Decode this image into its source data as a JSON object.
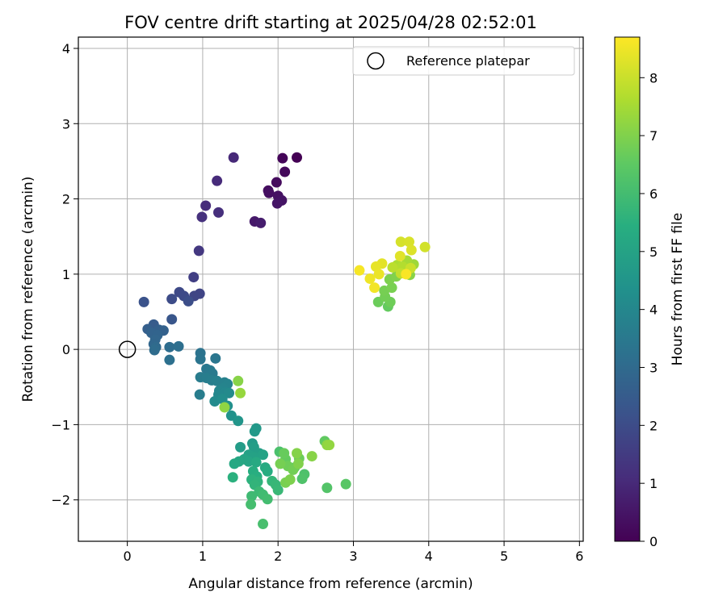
{
  "chart_data": {
    "type": "scatter",
    "title": "FOV centre drift starting at 2025/04/28 02:52:01",
    "xlabel": "Angular distance from reference (arcmin)",
    "ylabel": "Rotation from reference (arcmin)",
    "colorbar_label": "Hours from first FF file",
    "xlim": [
      -0.65,
      6.05
    ],
    "ylim": [
      -2.55,
      4.15
    ],
    "color_range": [
      0,
      8.7
    ],
    "colormap": "viridis",
    "grid": true,
    "legend_position": "upper right",
    "x_ticks": [
      0,
      1,
      2,
      3,
      4,
      5,
      6
    ],
    "y_ticks": [
      -2,
      -1,
      0,
      1,
      2,
      3,
      4
    ],
    "color_ticks": [
      0,
      1,
      2,
      3,
      4,
      5,
      6,
      7,
      8
    ],
    "x_tick_labels": [
      "0",
      "1",
      "2",
      "3",
      "4",
      "5",
      "6"
    ],
    "y_tick_labels": [
      "−2",
      "−1",
      "0",
      "1",
      "2",
      "3",
      "4"
    ],
    "color_tick_labels": [
      "0",
      "1",
      "2",
      "3",
      "4",
      "5",
      "6",
      "7",
      "8"
    ],
    "reference": {
      "name": "Reference platepar",
      "x": 0,
      "y": 0
    },
    "points": [
      {
        "x": 2.25,
        "y": 2.55,
        "t": 0.0
      },
      {
        "x": 2.06,
        "y": 2.54,
        "t": 0.1
      },
      {
        "x": 2.09,
        "y": 2.36,
        "t": 0.2
      },
      {
        "x": 1.98,
        "y": 2.22,
        "t": 0.25
      },
      {
        "x": 1.87,
        "y": 2.11,
        "t": 0.3
      },
      {
        "x": 1.88,
        "y": 2.08,
        "t": 0.35
      },
      {
        "x": 2.0,
        "y": 2.04,
        "t": 0.4
      },
      {
        "x": 2.05,
        "y": 1.98,
        "t": 0.45
      },
      {
        "x": 1.99,
        "y": 1.94,
        "t": 0.5
      },
      {
        "x": 1.69,
        "y": 1.7,
        "t": 0.6
      },
      {
        "x": 1.77,
        "y": 1.68,
        "t": 0.7
      },
      {
        "x": 1.41,
        "y": 2.55,
        "t": 1.0
      },
      {
        "x": 1.19,
        "y": 2.24,
        "t": 1.05
      },
      {
        "x": 1.04,
        "y": 1.91,
        "t": 1.1
      },
      {
        "x": 1.21,
        "y": 1.82,
        "t": 1.15
      },
      {
        "x": 0.99,
        "y": 1.76,
        "t": 1.2
      },
      {
        "x": 0.95,
        "y": 1.31,
        "t": 1.4
      },
      {
        "x": 0.88,
        "y": 0.96,
        "t": 1.6
      },
      {
        "x": 0.96,
        "y": 0.74,
        "t": 1.75
      },
      {
        "x": 0.89,
        "y": 0.71,
        "t": 1.8
      },
      {
        "x": 0.69,
        "y": 0.76,
        "t": 1.9
      },
      {
        "x": 0.75,
        "y": 0.71,
        "t": 1.95
      },
      {
        "x": 0.59,
        "y": 0.67,
        "t": 2.0
      },
      {
        "x": 0.81,
        "y": 0.64,
        "t": 2.05
      },
      {
        "x": 0.22,
        "y": 0.63,
        "t": 2.2
      },
      {
        "x": 0.59,
        "y": 0.4,
        "t": 2.3
      },
      {
        "x": 0.35,
        "y": 0.33,
        "t": 2.5
      },
      {
        "x": 0.27,
        "y": 0.27,
        "t": 2.6
      },
      {
        "x": 0.42,
        "y": 0.26,
        "t": 2.65
      },
      {
        "x": 0.48,
        "y": 0.25,
        "t": 2.7
      },
      {
        "x": 0.32,
        "y": 0.22,
        "t": 2.75
      },
      {
        "x": 0.4,
        "y": 0.19,
        "t": 2.8
      },
      {
        "x": 0.37,
        "y": 0.13,
        "t": 2.85
      },
      {
        "x": 0.35,
        "y": 0.07,
        "t": 2.9
      },
      {
        "x": 0.38,
        "y": 0.03,
        "t": 3.0
      },
      {
        "x": 0.36,
        "y": -0.01,
        "t": 3.05
      },
      {
        "x": 0.56,
        "y": 0.03,
        "t": 3.1
      },
      {
        "x": 0.68,
        "y": 0.04,
        "t": 3.15
      },
      {
        "x": 0.56,
        "y": -0.14,
        "t": 3.2
      },
      {
        "x": 0.97,
        "y": -0.05,
        "t": 3.3
      },
      {
        "x": 0.97,
        "y": -0.13,
        "t": 3.35
      },
      {
        "x": 1.17,
        "y": -0.12,
        "t": 3.4
      },
      {
        "x": 1.05,
        "y": -0.26,
        "t": 3.45
      },
      {
        "x": 1.1,
        "y": -0.28,
        "t": 3.5
      },
      {
        "x": 1.13,
        "y": -0.32,
        "t": 3.55
      },
      {
        "x": 0.97,
        "y": -0.37,
        "t": 3.6
      },
      {
        "x": 1.05,
        "y": -0.38,
        "t": 3.65
      },
      {
        "x": 1.12,
        "y": -0.41,
        "t": 3.7
      },
      {
        "x": 1.19,
        "y": -0.42,
        "t": 3.75
      },
      {
        "x": 1.29,
        "y": -0.44,
        "t": 3.8
      },
      {
        "x": 1.33,
        "y": -0.46,
        "t": 3.85
      },
      {
        "x": 1.27,
        "y": -0.52,
        "t": 3.9
      },
      {
        "x": 1.22,
        "y": -0.55,
        "t": 3.95
      },
      {
        "x": 1.3,
        "y": -0.57,
        "t": 4.0
      },
      {
        "x": 1.21,
        "y": -0.6,
        "t": 4.05
      },
      {
        "x": 1.35,
        "y": -0.58,
        "t": 4.1
      },
      {
        "x": 0.96,
        "y": -0.6,
        "t": 3.65
      },
      {
        "x": 1.16,
        "y": -0.69,
        "t": 4.15
      },
      {
        "x": 1.26,
        "y": -0.66,
        "t": 4.2
      },
      {
        "x": 1.33,
        "y": -0.75,
        "t": 4.3
      },
      {
        "x": 1.38,
        "y": -0.88,
        "t": 4.4
      },
      {
        "x": 1.47,
        "y": -0.95,
        "t": 4.5
      },
      {
        "x": 1.71,
        "y": -1.05,
        "t": 4.6
      },
      {
        "x": 1.69,
        "y": -1.09,
        "t": 4.65
      },
      {
        "x": 1.66,
        "y": -1.25,
        "t": 4.7
      },
      {
        "x": 1.5,
        "y": -1.3,
        "t": 4.75
      },
      {
        "x": 1.68,
        "y": -1.3,
        "t": 4.8
      },
      {
        "x": 1.75,
        "y": -1.38,
        "t": 4.85
      },
      {
        "x": 1.61,
        "y": -1.4,
        "t": 4.9
      },
      {
        "x": 1.68,
        "y": -1.43,
        "t": 4.95
      },
      {
        "x": 1.8,
        "y": -1.4,
        "t": 5.0
      },
      {
        "x": 1.55,
        "y": -1.46,
        "t": 5.05
      },
      {
        "x": 1.61,
        "y": -1.49,
        "t": 5.1
      },
      {
        "x": 1.48,
        "y": -1.49,
        "t": 5.15
      },
      {
        "x": 1.42,
        "y": -1.52,
        "t": 5.2
      },
      {
        "x": 1.71,
        "y": -1.5,
        "t": 5.25
      },
      {
        "x": 1.83,
        "y": -1.57,
        "t": 5.3
      },
      {
        "x": 1.86,
        "y": -1.62,
        "t": 5.35
      },
      {
        "x": 1.67,
        "y": -1.62,
        "t": 5.4
      },
      {
        "x": 1.72,
        "y": -1.69,
        "t": 5.45
      },
      {
        "x": 1.4,
        "y": -1.7,
        "t": 5.5
      },
      {
        "x": 1.65,
        "y": -1.73,
        "t": 5.55
      },
      {
        "x": 1.73,
        "y": -1.76,
        "t": 5.6
      },
      {
        "x": 1.69,
        "y": -1.8,
        "t": 5.65
      },
      {
        "x": 1.92,
        "y": -1.75,
        "t": 5.7
      },
      {
        "x": 1.97,
        "y": -1.8,
        "t": 5.75
      },
      {
        "x": 2.0,
        "y": -1.87,
        "t": 5.8
      },
      {
        "x": 1.75,
        "y": -1.89,
        "t": 5.85
      },
      {
        "x": 1.65,
        "y": -1.95,
        "t": 5.9
      },
      {
        "x": 1.8,
        "y": -1.93,
        "t": 5.95
      },
      {
        "x": 1.86,
        "y": -1.99,
        "t": 6.0
      },
      {
        "x": 1.64,
        "y": -2.06,
        "t": 6.05
      },
      {
        "x": 1.8,
        "y": -2.32,
        "t": 6.1
      },
      {
        "x": 2.02,
        "y": -1.36,
        "t": 6.15
      },
      {
        "x": 2.35,
        "y": -1.66,
        "t": 6.2
      },
      {
        "x": 2.32,
        "y": -1.72,
        "t": 6.25
      },
      {
        "x": 2.65,
        "y": -1.84,
        "t": 6.3
      },
      {
        "x": 2.9,
        "y": -1.79,
        "t": 6.4
      },
      {
        "x": 2.22,
        "y": -1.57,
        "t": 6.5
      },
      {
        "x": 2.62,
        "y": -1.22,
        "t": 6.55
      },
      {
        "x": 2.1,
        "y": -1.46,
        "t": 6.6
      },
      {
        "x": 2.08,
        "y": -1.38,
        "t": 6.65
      },
      {
        "x": 2.28,
        "y": -1.45,
        "t": 6.7
      },
      {
        "x": 2.13,
        "y": -1.55,
        "t": 6.75
      },
      {
        "x": 2.2,
        "y": -1.6,
        "t": 6.8
      },
      {
        "x": 2.03,
        "y": -1.52,
        "t": 6.85
      },
      {
        "x": 2.1,
        "y": -1.77,
        "t": 6.9
      },
      {
        "x": 2.16,
        "y": -1.73,
        "t": 6.95
      },
      {
        "x": 2.27,
        "y": -1.52,
        "t": 7.0
      },
      {
        "x": 2.25,
        "y": -1.38,
        "t": 7.05
      },
      {
        "x": 2.45,
        "y": -1.42,
        "t": 7.1
      },
      {
        "x": 2.65,
        "y": -1.27,
        "t": 7.2
      },
      {
        "x": 2.68,
        "y": -1.27,
        "t": 7.25
      },
      {
        "x": 1.5,
        "y": -0.58,
        "t": 7.3
      },
      {
        "x": 1.47,
        "y": -0.42,
        "t": 7.1
      },
      {
        "x": 1.29,
        "y": -0.77,
        "t": 7.2
      },
      {
        "x": 3.46,
        "y": 0.57,
        "t": 6.6
      },
      {
        "x": 3.33,
        "y": 0.63,
        "t": 6.7
      },
      {
        "x": 3.49,
        "y": 0.63,
        "t": 6.75
      },
      {
        "x": 3.42,
        "y": 0.7,
        "t": 6.8
      },
      {
        "x": 3.41,
        "y": 0.78,
        "t": 6.85
      },
      {
        "x": 3.51,
        "y": 0.82,
        "t": 6.9
      },
      {
        "x": 3.48,
        "y": 0.93,
        "t": 6.95
      },
      {
        "x": 3.57,
        "y": 0.97,
        "t": 7.0
      },
      {
        "x": 3.75,
        "y": 0.99,
        "t": 7.1
      },
      {
        "x": 3.68,
        "y": 1.05,
        "t": 7.3
      },
      {
        "x": 3.8,
        "y": 1.13,
        "t": 7.4
      },
      {
        "x": 3.71,
        "y": 1.18,
        "t": 7.5
      },
      {
        "x": 3.58,
        "y": 1.12,
        "t": 7.6
      },
      {
        "x": 3.65,
        "y": 1.1,
        "t": 7.7
      },
      {
        "x": 3.52,
        "y": 1.09,
        "t": 7.8
      },
      {
        "x": 3.63,
        "y": 1.01,
        "t": 7.9
      },
      {
        "x": 3.76,
        "y": 1.08,
        "t": 8.0
      },
      {
        "x": 3.95,
        "y": 1.36,
        "t": 8.1
      },
      {
        "x": 3.63,
        "y": 1.43,
        "t": 8.15
      },
      {
        "x": 3.74,
        "y": 1.43,
        "t": 8.2
      },
      {
        "x": 3.77,
        "y": 1.32,
        "t": 8.25
      },
      {
        "x": 3.62,
        "y": 1.24,
        "t": 8.3
      },
      {
        "x": 3.38,
        "y": 1.14,
        "t": 8.35
      },
      {
        "x": 3.3,
        "y": 1.1,
        "t": 8.4
      },
      {
        "x": 3.34,
        "y": 1.0,
        "t": 8.45
      },
      {
        "x": 3.22,
        "y": 0.94,
        "t": 8.5
      },
      {
        "x": 3.28,
        "y": 0.82,
        "t": 8.55
      },
      {
        "x": 3.08,
        "y": 1.05,
        "t": 8.6
      },
      {
        "x": 3.7,
        "y": 1.0,
        "t": 8.65
      }
    ]
  }
}
